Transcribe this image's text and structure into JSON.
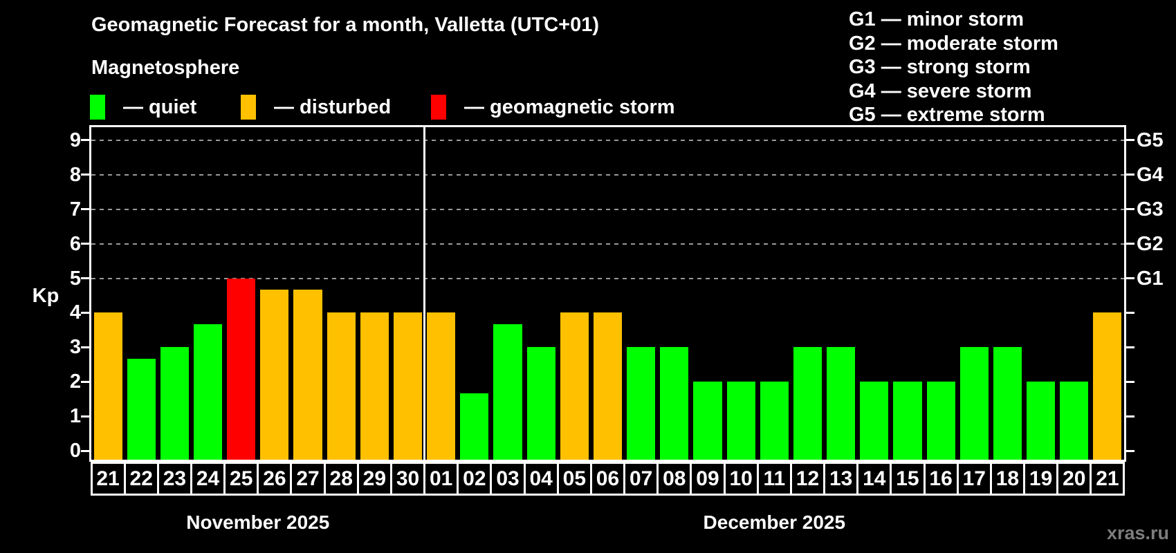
{
  "legend": {
    "items": [
      {
        "key": "quiet",
        "label": "— quiet",
        "color": "#00ff00"
      },
      {
        "key": "disturbed",
        "label": "— disturbed",
        "color": "#ffc000"
      },
      {
        "key": "storm",
        "label": "— geomagnetic storm",
        "color": "#ff0000"
      }
    ]
  },
  "g_legend": {
    "items": [
      "G1 — minor storm",
      "G2 — moderate storm",
      "G3 — strong storm",
      "G4 — severe storm",
      "G5 — extreme storm"
    ]
  },
  "watermark": "xras.ru",
  "chart_data": {
    "type": "bar",
    "title": "Geomagnetic Forecast for a month, Valletta (UTC+01)",
    "subtitle": "Magnetosphere",
    "ylabel": "Kp",
    "ylim": [
      0,
      9
    ],
    "y_ticks": [
      0,
      1,
      2,
      3,
      4,
      5,
      6,
      7,
      8,
      9
    ],
    "gridlines_at": [
      5,
      6,
      7,
      8,
      9
    ],
    "right_axis_labels": [
      {
        "label": "G1",
        "kp": 5
      },
      {
        "label": "G2",
        "kp": 6
      },
      {
        "label": "G3",
        "kp": 7
      },
      {
        "label": "G4",
        "kp": 8
      },
      {
        "label": "G5",
        "kp": 9
      }
    ],
    "categories": [
      "21",
      "22",
      "23",
      "24",
      "25",
      "26",
      "27",
      "28",
      "29",
      "30",
      "01",
      "02",
      "03",
      "04",
      "05",
      "06",
      "07",
      "08",
      "09",
      "10",
      "11",
      "12",
      "13",
      "14",
      "15",
      "16",
      "17",
      "18",
      "19",
      "20",
      "21"
    ],
    "values": [
      4,
      2.67,
      3,
      3.67,
      5,
      4.67,
      4.67,
      4,
      4,
      4,
      4,
      1.67,
      3.67,
      3,
      4,
      4,
      3,
      3,
      2,
      2,
      2,
      3,
      3,
      2,
      2,
      2,
      3,
      3,
      2,
      2,
      4
    ],
    "statuses": [
      "disturbed",
      "quiet",
      "quiet",
      "quiet",
      "storm",
      "disturbed",
      "disturbed",
      "disturbed",
      "disturbed",
      "disturbed",
      "disturbed",
      "quiet",
      "quiet",
      "quiet",
      "disturbed",
      "disturbed",
      "quiet",
      "quiet",
      "quiet",
      "quiet",
      "quiet",
      "quiet",
      "quiet",
      "quiet",
      "quiet",
      "quiet",
      "quiet",
      "quiet",
      "quiet",
      "quiet",
      "disturbed"
    ],
    "status_colors": {
      "quiet": "#00ff00",
      "disturbed": "#ffc000",
      "storm": "#ff0000"
    },
    "months": [
      {
        "label": "November 2025",
        "days": 10
      },
      {
        "label": "December 2025",
        "days": 21
      }
    ]
  }
}
